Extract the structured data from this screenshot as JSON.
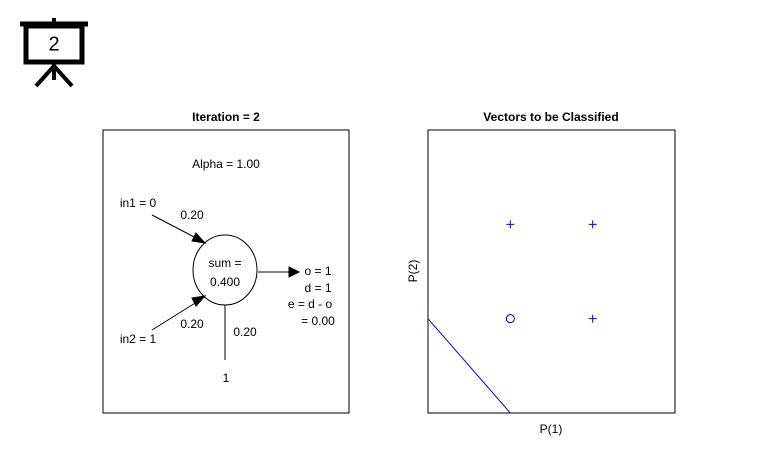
{
  "header": {
    "icon_label": "2"
  },
  "left_panel": {
    "title": "Iteration = 2",
    "alpha": "Alpha = 1.00",
    "in1": "in1 = 0",
    "in2": "in2 = 1",
    "w1": "0.20",
    "w2": "0.20",
    "bias_weight": "0.20",
    "bias_input": "1",
    "sum_label": "sum =",
    "sum_value": "0.400",
    "output": [
      "o = 1",
      "d = 1",
      "e = d - o",
      "= 0.00"
    ]
  },
  "chart_data": {
    "type": "scatter",
    "title": "Vectors to be Classified",
    "x_label": "P(1)",
    "y_label": "P(2)",
    "xlim": [
      -1,
      2
    ],
    "ylim": [
      -1,
      2
    ],
    "color": "#0000ff",
    "points": {
      "x": [
        0,
        1,
        1,
        0
      ],
      "y": [
        1,
        1,
        0,
        0
      ],
      "markers": [
        "+",
        "+",
        "+",
        "o"
      ]
    },
    "boundary": {
      "x": [
        -1,
        0
      ],
      "y": [
        0,
        -1
      ]
    }
  }
}
